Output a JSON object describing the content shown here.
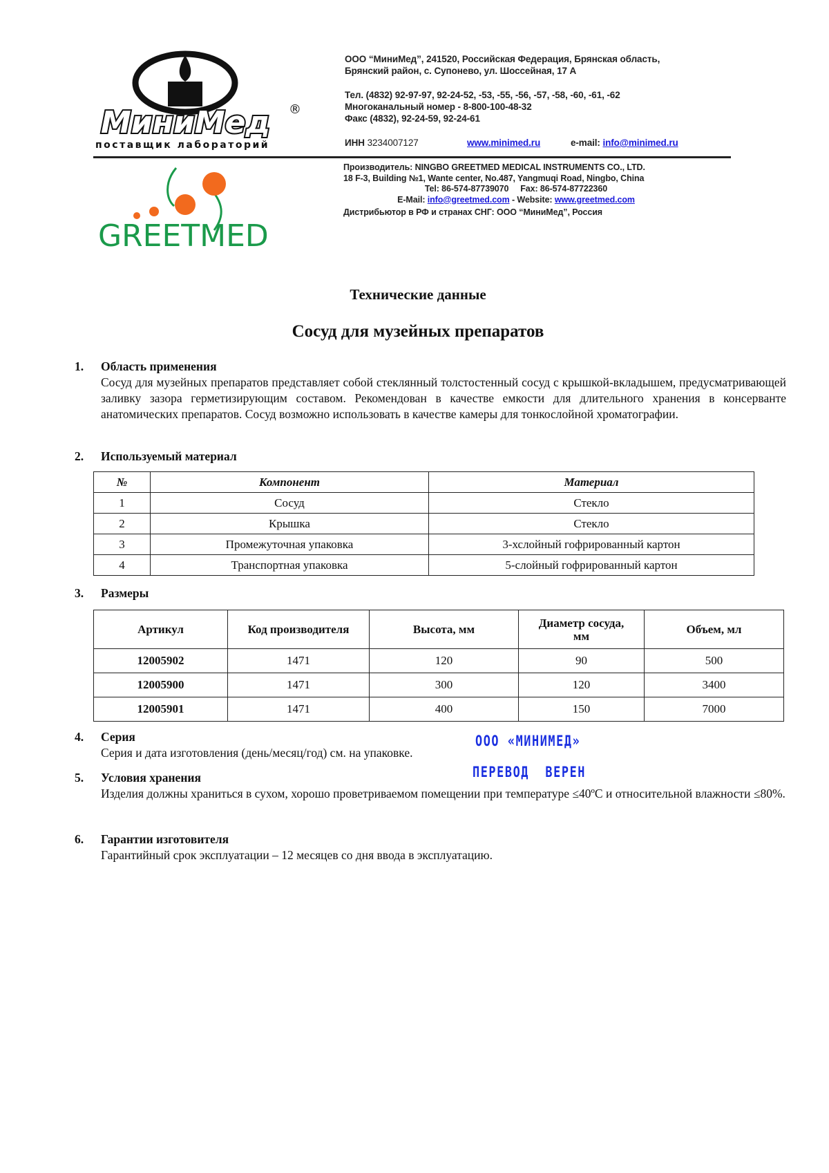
{
  "header": {
    "minimed_logo": {
      "name": "МиниМед",
      "tagline": "поставщик лабораторий",
      "reg": "®"
    },
    "greetmed_logo": "GREETMED",
    "address_lines": [
      "ООО “МиниМед”, 241520, Российская Федерация, Брянская область,",
      "Брянский район,  с. Супонево, ул. Шоссейная, 17 А"
    ],
    "phone_lines": [
      "Тел. (4832) 92-97-97, 92-24-52, -53, -55, -56, -57, -58, -60, -61, -62",
      "Многоканальный номер - 8-800-100-48-32",
      "Факс (4832), 92-24-59, 92-24-61"
    ],
    "inn_label": "ИНН",
    "inn": "3234007127",
    "website": "www.minimed.ru",
    "email_label": "e-mail:",
    "email": "info@minimed.ru",
    "manufacturer_lines": [
      "Производитель: NINGBO GREETMED MEDICAL INSTRUMENTS CO., LTD.",
      "18 F-3, Building №1, Wante center, No.487, Yangmuqi Road, Ningbo, China",
      "Tel: 86-574-87739070     Fax: 86-574-87722360"
    ],
    "mfr_email_label": "E-Mail:",
    "mfr_email": "info@greetmed.com",
    "mfr_website_label": "- Website:",
    "mfr_website": "www.greetmed.com",
    "distributor": "Дистрибьютор в РФ и странах СНГ: ООО “МиниМед”, Россия"
  },
  "doc_title": "Технические данные",
  "product_title": "Сосуд для музейных препаратов",
  "sections": [
    {
      "num": "1.",
      "title": "Область применения",
      "text": "Сосуд для музейных препаратов представляет собой стеклянный толстостенный сосуд с крышкой-вкладышем, предусматривающей заливку зазора герметизирующим составом. Рекомендован в качестве емкости для длительного хранения в консерванте анатомических препаратов. Сосуд возможно использовать в качестве камеры для тонкослойной хроматографии."
    },
    {
      "num": "2.",
      "title": "Используемый материал"
    },
    {
      "num": "3.",
      "title": "Размеры"
    },
    {
      "num": "4.",
      "title": "Серия",
      "text": "Серия и дата изготовления (день/месяц/год) см. на упаковке."
    },
    {
      "num": "5.",
      "title": "Условия хранения",
      "text": "Изделия должны храниться в сухом, хорошо проветриваемом помещении при температуре ≤40ºС и относительной влажности ≤80%."
    },
    {
      "num": "6.",
      "title": "Гарантии изготовителя",
      "text": "Гарантийный срок эксплуатации – 12 месяцев со дня ввода в эксплуатацию."
    }
  ],
  "materials_table": {
    "headers": [
      "№",
      "Компонент",
      "Материал"
    ],
    "rows": [
      [
        "1",
        "Сосуд",
        "Стекло"
      ],
      [
        "2",
        "Крышка",
        "Стекло"
      ],
      [
        "3",
        "Промежуточная упаковка",
        "3-хслойный гофрированный картон"
      ],
      [
        "4",
        "Транспортная упаковка",
        "5-слойный гофрированный картон"
      ]
    ]
  },
  "dimensions_table": {
    "headers": [
      "Артикул",
      "Код производителя",
      "Высота, мм",
      "Диаметр сосуда, мм",
      "Объем, мл"
    ],
    "rows": [
      [
        "12005902",
        "1471",
        "120",
        "90",
        "500"
      ],
      [
        "12005900",
        "1471",
        "300",
        "120",
        "3400"
      ],
      [
        "12005901",
        "1471",
        "400",
        "150",
        "7000"
      ]
    ]
  },
  "stamp": {
    "line1": "ООО «МИНИМЕД»",
    "line2": "ПЕРЕВОД  ВЕРЕН",
    "color": "#1a2fe0"
  }
}
